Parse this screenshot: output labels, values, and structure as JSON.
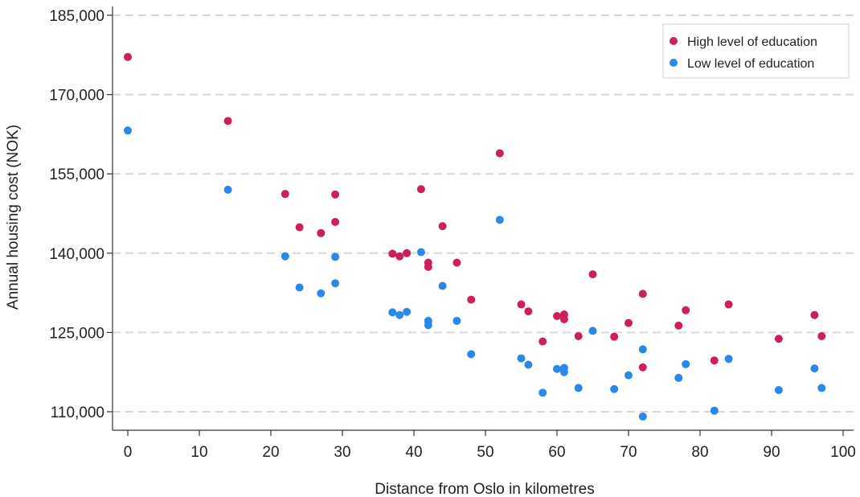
{
  "chart_data": {
    "type": "scatter",
    "xlabel": "Distance from Oslo in kilometres",
    "ylabel": "Annual housing cost (NOK)",
    "xlim": [
      0,
      100
    ],
    "ylim": [
      110000,
      185000
    ],
    "xticks": [
      0,
      10,
      20,
      30,
      40,
      50,
      60,
      70,
      80,
      90,
      100
    ],
    "xtick_labels": [
      "0",
      "10",
      "20",
      "30",
      "40",
      "50",
      "60",
      "70",
      "80",
      "90",
      "100"
    ],
    "yticks": [
      110000,
      125000,
      140000,
      155000,
      170000,
      185000
    ],
    "ytick_labels": [
      "110,000",
      "125,000",
      "140,000",
      "155,000",
      "170,000",
      "185,000"
    ],
    "grid": "horizontal dashed",
    "legend_position": "top-right",
    "series": [
      {
        "name": "High level of education",
        "color": "#cc1f5b",
        "points": [
          [
            0,
            177100
          ],
          [
            14,
            165000
          ],
          [
            22,
            151200
          ],
          [
            24,
            144900
          ],
          [
            27,
            143800
          ],
          [
            29,
            151100
          ],
          [
            29,
            145900
          ],
          [
            37,
            139900
          ],
          [
            38,
            139400
          ],
          [
            39,
            140000
          ],
          [
            41,
            152100
          ],
          [
            42,
            138200
          ],
          [
            42,
            137400
          ],
          [
            44,
            145100
          ],
          [
            46,
            138200
          ],
          [
            48,
            131200
          ],
          [
            52,
            158900
          ],
          [
            55,
            130300
          ],
          [
            56,
            129000
          ],
          [
            58,
            123300
          ],
          [
            60,
            128100
          ],
          [
            61,
            128400
          ],
          [
            61,
            127500
          ],
          [
            63,
            124300
          ],
          [
            65,
            136000
          ],
          [
            68,
            124200
          ],
          [
            70,
            126800
          ],
          [
            72,
            132300
          ],
          [
            72,
            118400
          ],
          [
            77,
            126300
          ],
          [
            78,
            129200
          ],
          [
            82,
            119700
          ],
          [
            84,
            130300
          ],
          [
            91,
            123800
          ],
          [
            96,
            128300
          ],
          [
            97,
            124300
          ]
        ]
      },
      {
        "name": "Low level of education",
        "color": "#2b88e8",
        "points": [
          [
            0,
            163200
          ],
          [
            14,
            152000
          ],
          [
            22,
            139400
          ],
          [
            24,
            133500
          ],
          [
            27,
            132400
          ],
          [
            29,
            139300
          ],
          [
            29,
            134300
          ],
          [
            37,
            128800
          ],
          [
            38,
            128300
          ],
          [
            39,
            128900
          ],
          [
            41,
            140200
          ],
          [
            42,
            127200
          ],
          [
            42,
            126400
          ],
          [
            44,
            133800
          ],
          [
            46,
            127200
          ],
          [
            48,
            120900
          ],
          [
            52,
            146300
          ],
          [
            55,
            120100
          ],
          [
            56,
            118900
          ],
          [
            58,
            113600
          ],
          [
            60,
            118100
          ],
          [
            61,
            118300
          ],
          [
            61,
            117500
          ],
          [
            63,
            114500
          ],
          [
            65,
            125300
          ],
          [
            68,
            114300
          ],
          [
            70,
            116900
          ],
          [
            72,
            121800
          ],
          [
            72,
            109100
          ],
          [
            77,
            116400
          ],
          [
            78,
            119000
          ],
          [
            82,
            110200
          ],
          [
            84,
            120000
          ],
          [
            91,
            114100
          ],
          [
            96,
            118200
          ],
          [
            97,
            114500
          ]
        ]
      }
    ]
  }
}
